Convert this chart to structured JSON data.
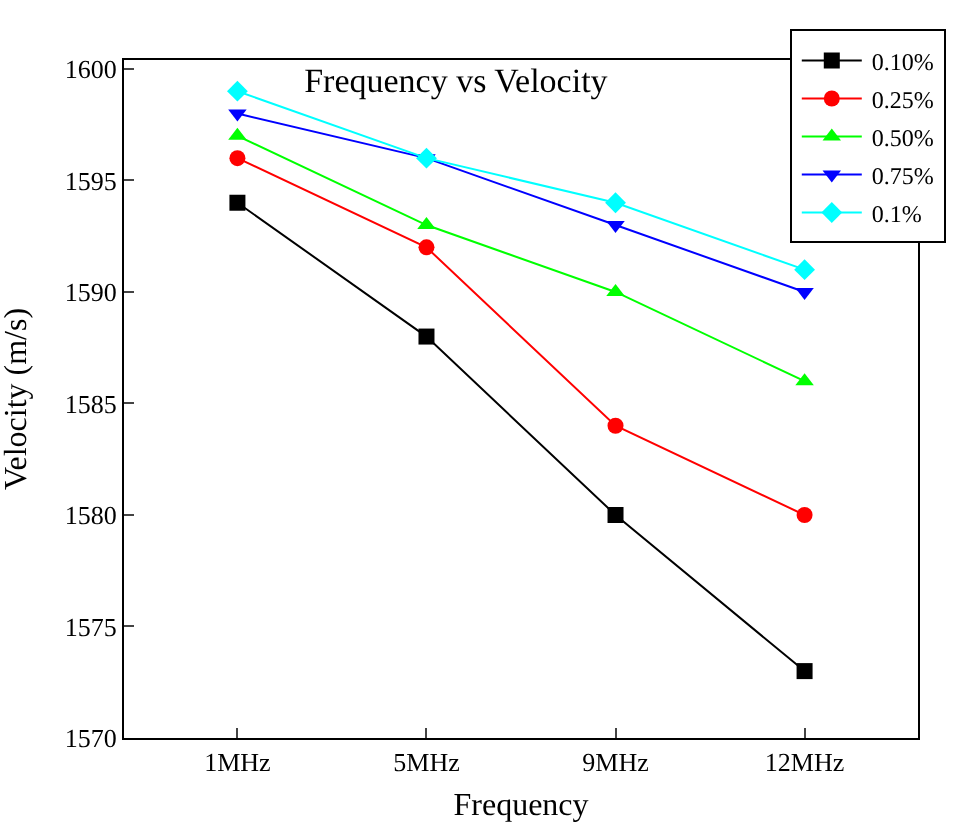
{
  "chart_data": {
    "type": "line",
    "title": "Frequency vs Velocity",
    "xlabel": "Frequency",
    "ylabel": "Velocity (m/s)",
    "categories": [
      "1MHz",
      "5MHz",
      "9MHz",
      "12MHz"
    ],
    "series": [
      {
        "name": "0.10%",
        "color": "#000000",
        "marker": "square",
        "values": [
          1594,
          1588,
          1580,
          1573
        ]
      },
      {
        "name": "0.25%",
        "color": "#ff0000",
        "marker": "circle",
        "values": [
          1596,
          1592,
          1584,
          1580
        ]
      },
      {
        "name": "0.50%",
        "color": "#00ff00",
        "marker": "triangle",
        "values": [
          1597,
          1593,
          1590,
          1586
        ]
      },
      {
        "name": "0.75%",
        "color": "#0000ff",
        "marker": "triangle",
        "values": [
          1598,
          1596,
          1593,
          1590
        ]
      },
      {
        "name": "0.1%",
        "color": "#00ffff",
        "marker": "diamond",
        "values": [
          1599,
          1596,
          1594,
          1591
        ]
      }
    ],
    "ylim": [
      1570,
      1600.4
    ],
    "yticks": [
      1570,
      1575,
      1580,
      1585,
      1590,
      1595,
      1600
    ],
    "legend": "top right",
    "line_style": "solid"
  }
}
